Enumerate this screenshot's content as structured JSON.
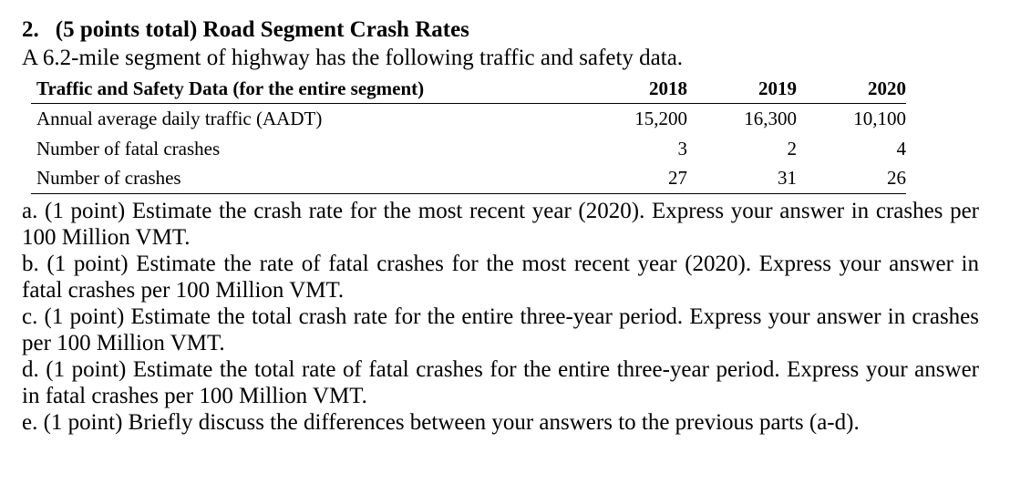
{
  "question": {
    "number": "2.",
    "title": "(5 points total) Road Segment Crash Rates",
    "intro": "A 6.2-mile segment of highway has the following traffic and safety data."
  },
  "table": {
    "headers": [
      "Traffic and Safety Data (for the entire segment)",
      "2018",
      "2019",
      "2020"
    ],
    "rows": [
      {
        "label": "Annual average daily traffic (AADT)",
        "values": [
          "15,200",
          "16,300",
          "10,100"
        ]
      },
      {
        "label": "Number of fatal crashes",
        "values": [
          "3",
          "2",
          "4"
        ]
      },
      {
        "label": "Number of crashes",
        "values": [
          "27",
          "31",
          "26"
        ]
      }
    ]
  },
  "parts": [
    "a. (1 point) Estimate the crash rate for the most recent year (2020). Express your answer in crashes per 100 Million VMT.",
    "b. (1 point) Estimate the rate of fatal crashes for the most recent year (2020). Express your answer in fatal crashes per 100 Million VMT.",
    "c. (1 point) Estimate the total crash rate for the entire three-year period. Express your answer in crashes per 100 Million VMT.",
    "d. (1 point) Estimate the total rate of fatal crashes for the entire three-year period. Express your answer in fatal crashes per 100 Million VMT.",
    "e. (1 point) Briefly discuss the differences between your answers to the previous parts (a-d)."
  ]
}
